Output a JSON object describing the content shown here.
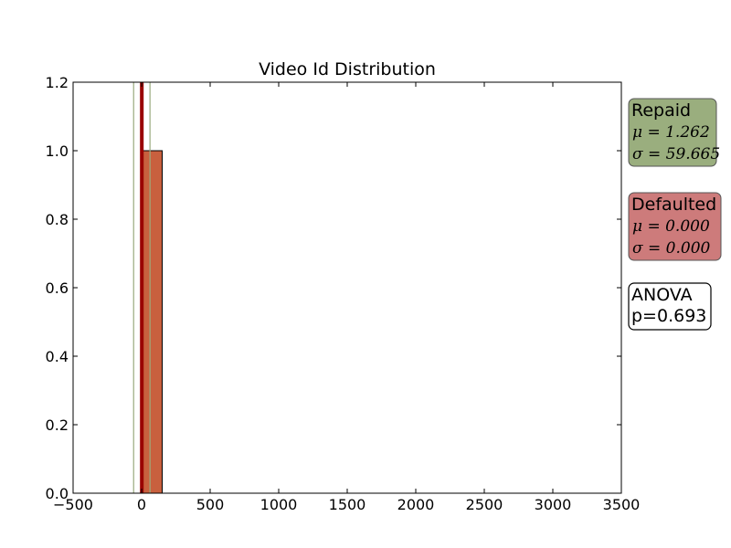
{
  "chart_data": {
    "type": "bar",
    "title": "Video Id Distribution",
    "xlim": [
      -500,
      3500
    ],
    "ylim": [
      0,
      1.2
    ],
    "x_ticks": [
      "−500",
      "0",
      "500",
      "1000",
      "1500",
      "2000",
      "2500",
      "3000",
      "3500"
    ],
    "y_ticks": [
      "0.0",
      "0.2",
      "0.4",
      "0.6",
      "0.8",
      "1.0",
      "1.2"
    ],
    "bins": [
      {
        "x0": 0,
        "x1": 150,
        "value": 1.0
      }
    ],
    "lines": {
      "mean": 1.262,
      "sigma_low": -58.403,
      "sigma_high": 60.927
    },
    "colors": {
      "bar": "#c8603e",
      "mean_line": "#990000",
      "sigma_line": "#9aab7e",
      "repaid_box": "#9aae7e",
      "defaulted_box": "#cd7b7b"
    },
    "grid": false,
    "annotations": {
      "repaid": {
        "title": "Repaid",
        "mu": "μ = 1.262",
        "sigma": "σ = 59.665"
      },
      "defaulted": {
        "title": "Defaulted",
        "mu": "μ = 0.000",
        "sigma": "σ = 0.000"
      },
      "anova": {
        "line1": "ANOVA",
        "line2": "p=0.693"
      }
    }
  }
}
